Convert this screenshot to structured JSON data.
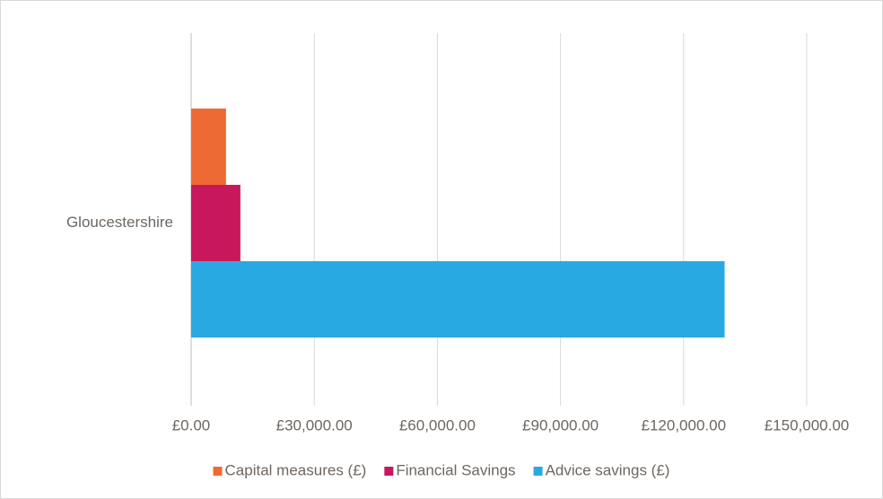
{
  "chart_data": {
    "type": "barh",
    "categories": [
      "Gloucestershire"
    ],
    "series": [
      {
        "name": "Capital measures (£)",
        "color": "#ed6b33",
        "values": [
          8500
        ]
      },
      {
        "name": "Financial Savings",
        "color": "#c8175a",
        "values": [
          12000
        ]
      },
      {
        "name": "Advice savings (£)",
        "color": "#29a9e1",
        "values": [
          130000
        ]
      }
    ],
    "xlim": [
      0,
      150000
    ],
    "xticks": [
      {
        "value": 0,
        "label": "£0.00"
      },
      {
        "value": 30000,
        "label": "£30,000.00"
      },
      {
        "value": 60000,
        "label": "£60,000.00"
      },
      {
        "value": 90000,
        "label": "£90,000.00"
      },
      {
        "value": 120000,
        "label": "£120,000.00"
      },
      {
        "value": 150000,
        "label": "£150,000.00"
      }
    ],
    "grid": true,
    "legend": "bottom"
  }
}
